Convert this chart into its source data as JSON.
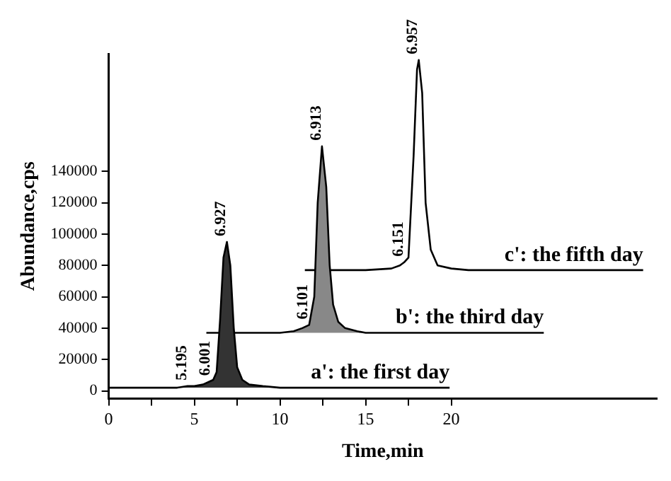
{
  "chart_data": {
    "type": "line",
    "xlabel": "Time,min",
    "ylabel": "Abundance,cps",
    "xlim": [
      0,
      32
    ],
    "ylim": [
      -5000,
      215000
    ],
    "xticks": [
      0,
      {
        "value": 2.5,
        "label": null
      },
      5,
      {
        "value": 7.5,
        "label": null
      },
      10,
      {
        "value": 12.5,
        "label": null
      },
      15,
      {
        "value": 17.5,
        "label": null
      },
      20
    ],
    "yticks": [
      0,
      20000,
      40000,
      60000,
      80000,
      100000,
      120000,
      140000
    ],
    "grid": false,
    "legend": false,
    "marker": "none",
    "line_style": "solid",
    "series": [
      {
        "name": "a': the first day",
        "type": "area",
        "color": "#333333",
        "x": [
          0,
          4,
          4.6,
          5,
          5.5,
          5.9,
          6.1,
          6.3,
          6.5,
          6.7,
          6.9,
          7.1,
          7.3,
          7.5,
          7.8,
          8.2,
          9,
          10,
          19.9
        ],
        "values": [
          2000,
          2000,
          3000,
          3000,
          4000,
          6000,
          7000,
          12000,
          45000,
          85000,
          95000,
          80000,
          40000,
          15000,
          7000,
          4000,
          3000,
          2000,
          2000
        ]
      },
      {
        "name": "b': the third day",
        "type": "area",
        "color": "#888888",
        "x": [
          5.7,
          10,
          10.8,
          11.3,
          11.7,
          12.0,
          12.2,
          12.45,
          12.7,
          12.9,
          13.1,
          13.4,
          13.8,
          14.5,
          15,
          25.4
        ],
        "values": [
          37000,
          37000,
          38000,
          40000,
          42000,
          60000,
          120000,
          156000,
          130000,
          80000,
          55000,
          44000,
          40000,
          38000,
          37000,
          37000
        ]
      },
      {
        "name": "c': the fifth day",
        "type": "line",
        "color": "#000000",
        "x": [
          11.45,
          15,
          16.5,
          17.0,
          17.25,
          17.5,
          17.8,
          18.0,
          18.1,
          18.3,
          18.5,
          18.8,
          19.2,
          20,
          21,
          31.2
        ],
        "values": [
          77000,
          77000,
          78000,
          80000,
          82000,
          85000,
          150000,
          205000,
          211000,
          190000,
          120000,
          90000,
          80000,
          78000,
          77000,
          77000
        ]
      }
    ],
    "annotations": [
      {
        "text": "5.195",
        "x": 4.6,
        "y": 3000
      },
      {
        "text": "6.001",
        "x": 6.0,
        "y": 6000
      },
      {
        "text": "6.927",
        "x": 6.9,
        "y": 95000
      },
      {
        "text": "6.101",
        "x": 11.7,
        "y": 42000
      },
      {
        "text": "6.913",
        "x": 12.45,
        "y": 156000
      },
      {
        "text": "6.151",
        "x": 17.25,
        "y": 82000
      },
      {
        "text": "6.957",
        "x": 18.1,
        "y": 211000
      }
    ]
  }
}
